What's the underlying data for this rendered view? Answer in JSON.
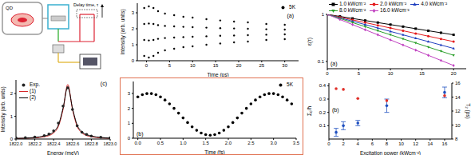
{
  "diagram": {
    "labels": [
      "QD",
      "Delay time, τ"
    ]
  },
  "chart_data": [
    {
      "type": "line",
      "annotations": [
        "(c)"
      ],
      "x_label": "Energy (meV)",
      "y_label": "Intensity (arb. units)",
      "x": [
        1822.0,
        1822.1,
        1822.2,
        1822.3,
        1822.35,
        1822.4,
        1822.45,
        1822.5,
        1822.55,
        1822.6,
        1822.65,
        1822.7,
        1822.75,
        1822.8,
        1822.9,
        1823.0
      ],
      "series": [
        {
          "name": "Exp.",
          "type": "scatter",
          "color": "#222222",
          "marker": "circle",
          "values": [
            0.05,
            0.06,
            0.09,
            0.15,
            0.22,
            0.36,
            0.7,
            1.45,
            2.25,
            1.3,
            0.58,
            0.3,
            0.2,
            0.13,
            0.08,
            0.05
          ]
        },
        {
          "name": "(1)",
          "type": "line",
          "color": "#d62728",
          "values": [
            0.02,
            0.03,
            0.05,
            0.1,
            0.15,
            0.27,
            0.55,
            1.3,
            2.4,
            1.3,
            0.55,
            0.27,
            0.15,
            0.1,
            0.05,
            0.03
          ]
        },
        {
          "name": "(2)",
          "type": "line",
          "color": "#000000",
          "values": [
            0.03,
            0.04,
            0.07,
            0.13,
            0.19,
            0.32,
            0.61,
            1.36,
            2.3,
            1.36,
            0.61,
            0.32,
            0.19,
            0.13,
            0.07,
            0.04
          ]
        }
      ],
      "xlim": [
        1822.0,
        1823.0
      ],
      "xticks": [
        {
          "value": 1822,
          "label": "1822.0"
        },
        1822.2,
        1822.4,
        1822.6,
        1822.8,
        {
          "value": 1823,
          "label": "1823.0"
        }
      ],
      "ylim": [
        0,
        2.6
      ],
      "yticks": [
        0,
        1,
        2
      ],
      "legend": "upper left"
    },
    {
      "type": "scatter",
      "annotations": [
        "(a)"
      ],
      "x_label": "Time (ps)",
      "y_label": "Intensity (arb. units)",
      "series": [
        {
          "name": "5K",
          "color": "#000000",
          "marker": "circle",
          "x": [
            -0.5,
            -0.5,
            -0.5,
            -0.5,
            0.5,
            0.5,
            0.5,
            0.5,
            1.5,
            1.5,
            1.5,
            1.5,
            2.5,
            2.5,
            2.5,
            2.5,
            4,
            4,
            4,
            4,
            6,
            6,
            6,
            6,
            8,
            8,
            8,
            8,
            10,
            10,
            10,
            10,
            13,
            13,
            13,
            13,
            16,
            16,
            16,
            16,
            19,
            19,
            19,
            19,
            22,
            22,
            22,
            22,
            26,
            26,
            26,
            26,
            30,
            30,
            30,
            30
          ],
          "values": [
            3.3,
            2.3,
            1.3,
            0.3,
            3.4,
            2.33,
            1.27,
            0.2,
            3.3,
            2.3,
            1.3,
            0.3,
            3.1,
            2.23,
            1.37,
            0.5,
            2.95,
            2.18,
            1.42,
            0.65,
            2.85,
            2.15,
            1.45,
            0.75,
            2.75,
            2.12,
            1.48,
            0.85,
            2.7,
            2.1,
            1.5,
            0.9,
            2.6,
            2.07,
            1.53,
            1.0,
            2.52,
            2.04,
            1.56,
            1.08,
            2.45,
            2.02,
            1.58,
            1.15,
            2.4,
            2.0,
            1.6,
            1.2,
            2.3,
            1.97,
            1.63,
            1.3,
            2.25,
            1.95,
            1.65,
            1.35
          ]
        }
      ],
      "xlim": [
        -2,
        33
      ],
      "xticks": [
        0,
        5,
        10,
        15,
        20,
        25,
        30
      ],
      "ylim": [
        0,
        3.6
      ],
      "yticks": [
        0,
        1,
        2,
        3
      ],
      "legend": "upper right"
    },
    {
      "type": "scatter",
      "annotations": [
        "(b)"
      ],
      "x_label": "Time (fs)",
      "series": [
        {
          "name": "5K",
          "color": "#000000",
          "marker": "circle",
          "x": [
            0,
            0.1,
            0.2,
            0.3,
            0.4,
            0.5,
            0.6,
            0.7,
            0.8,
            0.9,
            1.0,
            1.1,
            1.2,
            1.3,
            1.4,
            1.5,
            1.6,
            1.7,
            1.8,
            1.9,
            2.0,
            2.1,
            2.2,
            2.3,
            2.4,
            2.5,
            2.6,
            2.7,
            2.8,
            2.9,
            3.0,
            3.1,
            3.2,
            3.3,
            3.4
          ],
          "values": [
            2.77,
            2.92,
            2.99,
            2.99,
            2.92,
            2.77,
            2.56,
            2.3,
            2.0,
            1.68,
            1.36,
            1.05,
            0.76,
            0.53,
            0.35,
            0.24,
            0.2,
            0.24,
            0.35,
            0.53,
            0.76,
            1.05,
            1.36,
            1.68,
            2.0,
            2.3,
            2.56,
            2.77,
            2.92,
            2.99,
            2.99,
            2.92,
            2.77,
            2.56,
            2.3
          ]
        }
      ],
      "xlim": [
        -0.1,
        3.5
      ],
      "xticks": [
        {
          "value": 0,
          "label": "0.0"
        },
        0.5,
        {
          "value": 1,
          "label": "1.0"
        },
        1.5,
        {
          "value": 2,
          "label": "2.0"
        },
        2.5,
        {
          "value": 3,
          "label": "3.0"
        },
        3.5
      ],
      "ylim": [
        0,
        3.8
      ],
      "yticks": [
        0,
        1,
        2,
        3
      ],
      "legend": "upper right"
    },
    {
      "type": "line",
      "log": "y",
      "annotations": [
        "(a)"
      ],
      "y_label": "ε(τ)",
      "x": [
        0,
        2,
        4,
        6,
        8,
        10,
        12,
        14,
        16,
        18,
        20
      ],
      "series": [
        {
          "name": "1.0 kWcm⁻²",
          "color": "#000000",
          "marker": "square",
          "values": [
            1,
            0.905,
            0.819,
            0.741,
            0.67,
            0.607,
            0.549,
            0.497,
            0.449,
            0.407,
            0.368
          ]
        },
        {
          "name": "2.0 kWcm⁻²",
          "color": "#e41a1c",
          "marker": "circle",
          "values": [
            1,
            0.875,
            0.765,
            0.67,
            0.586,
            0.513,
            0.449,
            0.393,
            0.344,
            0.301,
            0.264
          ]
        },
        {
          "name": "4.0 kWcm⁻²",
          "color": "#1f3fbf",
          "marker": "triangle",
          "values": [
            1,
            0.846,
            0.717,
            0.607,
            0.513,
            0.435,
            0.368,
            0.311,
            0.264,
            0.223,
            0.189
          ]
        },
        {
          "name": "8.0 kWcm⁻²",
          "color": "#2ca02c",
          "marker": "triangle-down",
          "values": [
            1,
            0.819,
            0.67,
            0.549,
            0.449,
            0.368,
            0.301,
            0.247,
            0.202,
            0.165,
            0.135
          ]
        },
        {
          "name": "16.0 kWcm⁻²",
          "color": "#c040c0",
          "marker": "diamond",
          "values": [
            1,
            0.779,
            0.607,
            0.472,
            0.368,
            0.287,
            0.223,
            0.174,
            0.135,
            0.105,
            0.082
          ]
        }
      ],
      "xlim": [
        0,
        22
      ],
      "xticks": [
        0,
        5,
        10,
        15,
        20
      ],
      "ylim": [
        0.07,
        1
      ],
      "yticks": [
        0.1,
        1
      ],
      "legend": "top"
    },
    {
      "type": "scatter",
      "annotations": [
        "(b)"
      ],
      "x_label": "Excitation power (kWcm⁻²)",
      "y_label": "Σ₀/ħ",
      "y2_label": "T₂ (ps)",
      "x": [
        1,
        2,
        4,
        8,
        16
      ],
      "series": [
        {
          "color": "#2050c0",
          "marker": "circle",
          "values": [
            0.05,
            0.1,
            0.12,
            0.25,
            0.35
          ],
          "errors": [
            0.03,
            0.03,
            0.02,
            0.05,
            0.04
          ]
        },
        {
          "color": "#e0302a",
          "marker": "circle",
          "axis": "y2",
          "values": [
            15.2,
            15.1,
            13.8,
            13.5,
            14.2
          ]
        }
      ],
      "xlim": [
        0,
        17
      ],
      "xticks": [
        0,
        2,
        4,
        6,
        8,
        10,
        12,
        14,
        16
      ],
      "ylim": [
        0,
        0.42
      ],
      "yticks": [
        0.1,
        0.2,
        0.3,
        0.4
      ],
      "y2lim": [
        8,
        16
      ],
      "y2ticks": [
        8,
        10,
        12,
        14,
        16
      ]
    }
  ]
}
